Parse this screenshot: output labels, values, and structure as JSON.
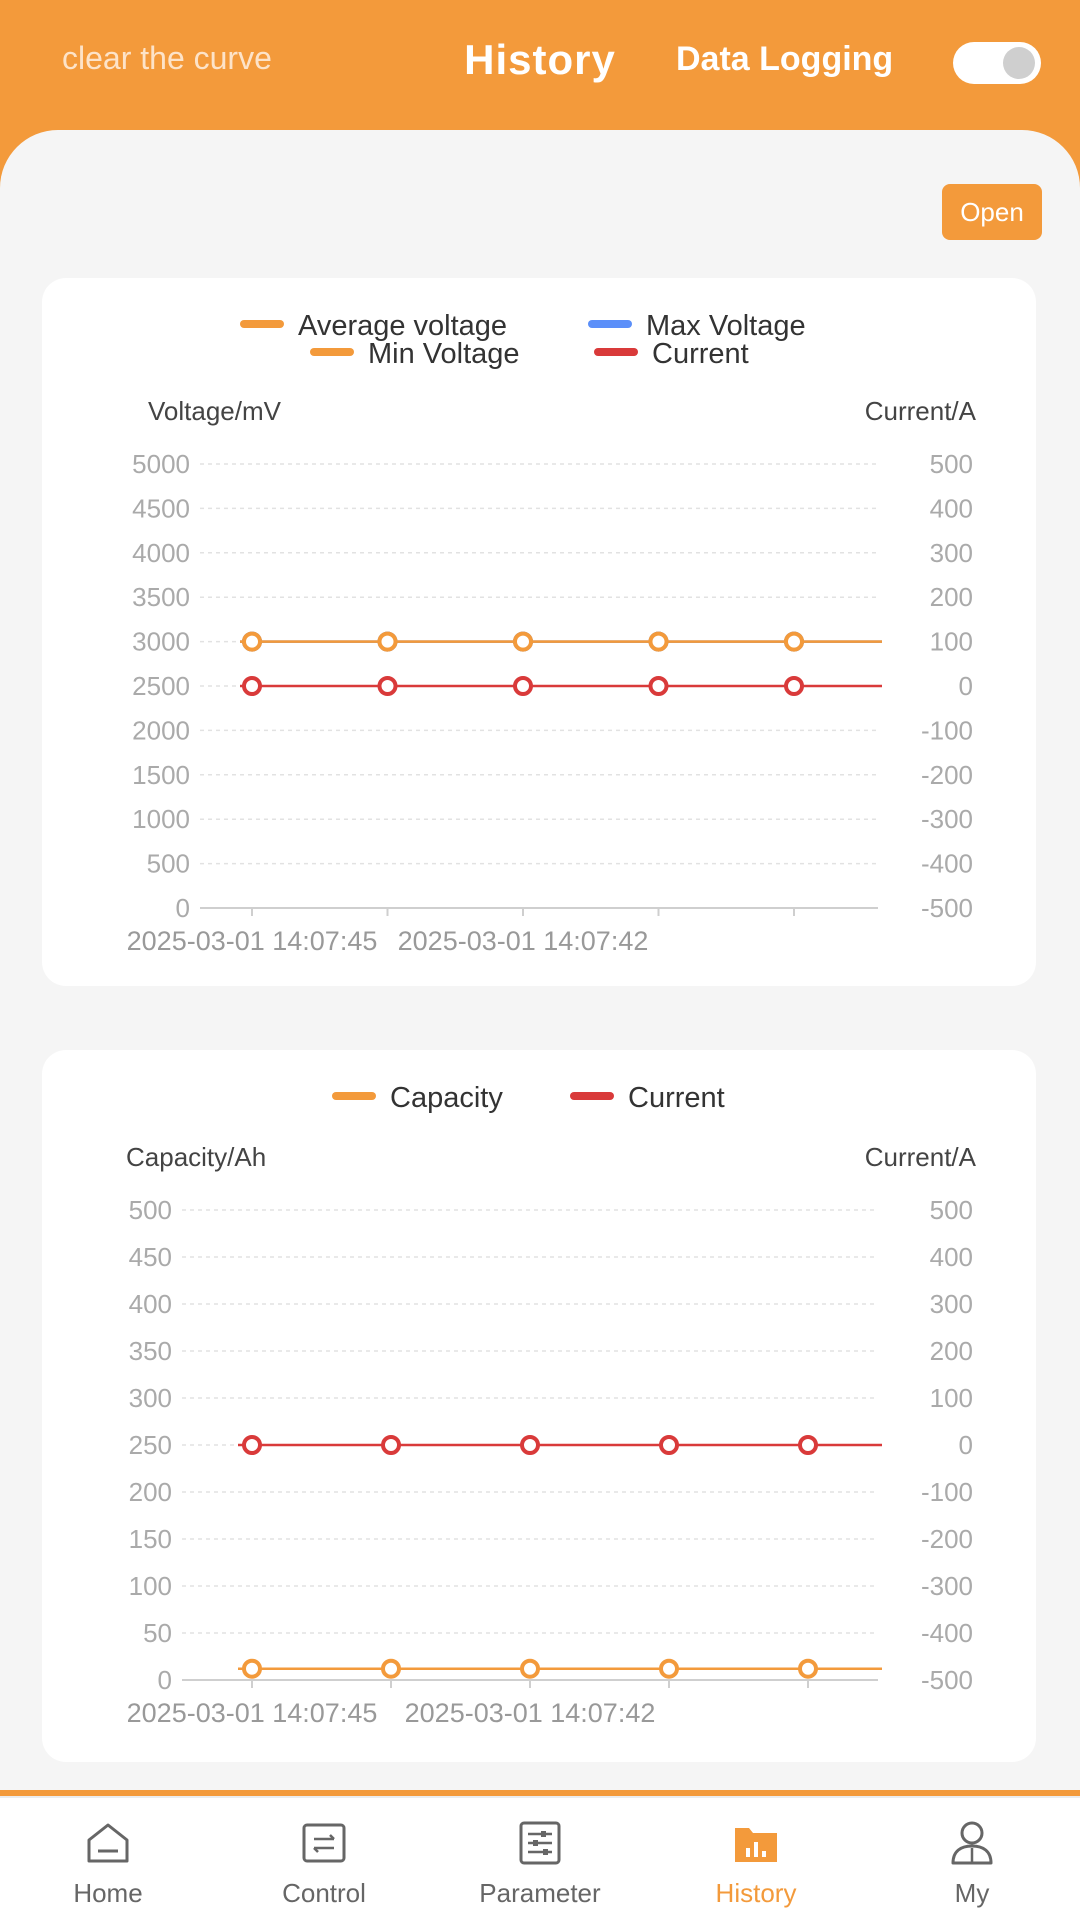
{
  "header": {
    "clear_label": "clear the curve",
    "title": "History",
    "logging_label": "Data Logging",
    "logging_enabled": true
  },
  "open_label": "Open",
  "charts": {
    "voltage": {
      "legend": [
        "Average voltage",
        "Max Voltage",
        "Min Voltage",
        "Current"
      ],
      "left_axis_title": "Voltage/mV",
      "right_axis_title": "Current/A",
      "left_ticks": [
        "5000",
        "4500",
        "4000",
        "3500",
        "3000",
        "2500",
        "2000",
        "1500",
        "1000",
        "500",
        "0"
      ],
      "right_ticks": [
        "500",
        "400",
        "300",
        "200",
        "100",
        "0",
        "-100",
        "-200",
        "-300",
        "-400",
        "-500"
      ],
      "x_labels": [
        "2025-03-01 14:07:45",
        "2025-03-01 14:07:42"
      ]
    },
    "capacity": {
      "legend": [
        "Capacity",
        "Current"
      ],
      "left_axis_title": "Capacity/Ah",
      "right_axis_title": "Current/A",
      "left_ticks": [
        "500",
        "450",
        "400",
        "350",
        "300",
        "250",
        "200",
        "150",
        "100",
        "50",
        "0"
      ],
      "right_ticks": [
        "500",
        "400",
        "300",
        "200",
        "100",
        "0",
        "-100",
        "-200",
        "-300",
        "-400",
        "-500"
      ],
      "x_labels": [
        "2025-03-01 14:07:45",
        "2025-03-01 14:07:42"
      ]
    }
  },
  "chart_data": [
    {
      "type": "line",
      "ylabel": "Voltage/mV",
      "y2label": "Current/A",
      "ylim": [
        0,
        5000
      ],
      "y2lim": [
        -500,
        500
      ],
      "x": [
        "2025-03-01 14:07:45",
        "",
        "2025-03-01 14:07:42",
        "",
        ""
      ],
      "series": [
        {
          "name": "Average voltage",
          "axis": "left",
          "color": "#f39a3b",
          "values": [
            3000,
            3000,
            3000,
            3000,
            3000
          ]
        },
        {
          "name": "Max Voltage",
          "axis": "left",
          "color": "#5b8ff9",
          "values": [
            3000,
            3000,
            3000,
            3000,
            3000
          ]
        },
        {
          "name": "Min Voltage",
          "axis": "left",
          "color": "#f39a3b",
          "values": [
            3000,
            3000,
            3000,
            3000,
            3000
          ]
        },
        {
          "name": "Current",
          "axis": "right",
          "color": "#d93a3a",
          "values": [
            0,
            0,
            0,
            0,
            0
          ]
        }
      ],
      "legend": "top",
      "grid": true
    },
    {
      "type": "line",
      "ylabel": "Capacity/Ah",
      "y2label": "Current/A",
      "ylim": [
        0,
        500
      ],
      "y2lim": [
        -500,
        500
      ],
      "x": [
        "2025-03-01 14:07:45",
        "",
        "2025-03-01 14:07:42",
        "",
        ""
      ],
      "series": [
        {
          "name": "Capacity",
          "axis": "left",
          "color": "#f39a3b",
          "values": [
            12,
            12,
            12,
            12,
            12
          ]
        },
        {
          "name": "Current",
          "axis": "right",
          "color": "#d93a3a",
          "values": [
            0,
            0,
            0,
            0,
            0
          ]
        }
      ],
      "legend": "top",
      "grid": true
    }
  ],
  "nav": {
    "items": [
      {
        "label": "Home",
        "icon": "home-icon"
      },
      {
        "label": "Control",
        "icon": "control-icon"
      },
      {
        "label": "Parameter",
        "icon": "parameter-icon"
      },
      {
        "label": "History",
        "icon": "history-icon"
      },
      {
        "label": "My",
        "icon": "user-icon"
      }
    ],
    "active": 3
  },
  "colors": {
    "accent": "#f39a3b",
    "blue": "#5b8ff9",
    "red": "#d93a3a"
  }
}
